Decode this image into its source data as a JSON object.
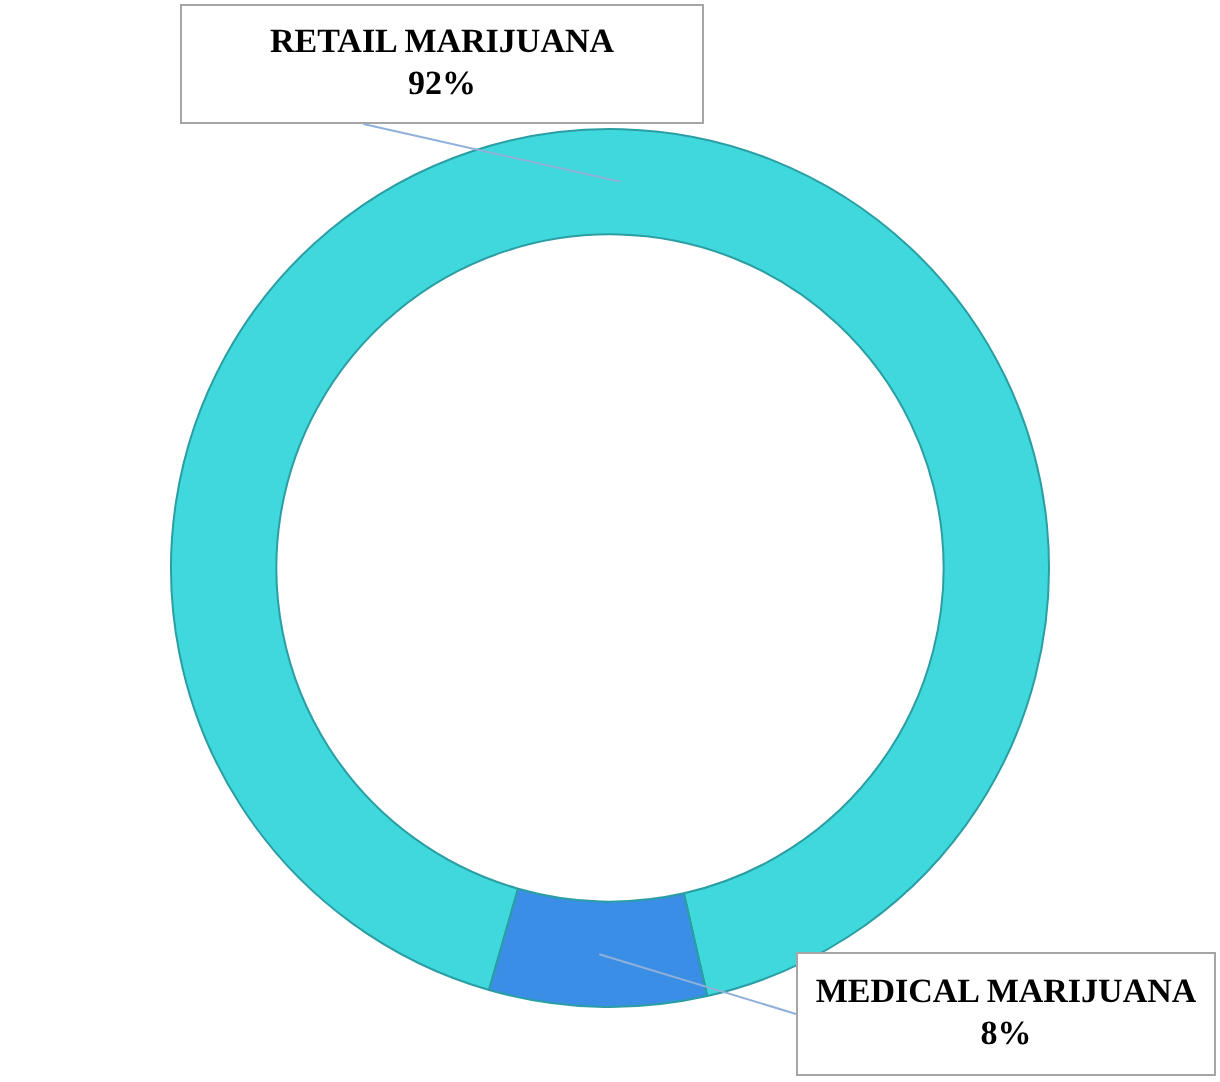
{
  "chart_data": {
    "type": "donut",
    "categories": [
      "RETAIL MARIJUANA",
      "MEDICAL MARIJUANA"
    ],
    "values": [
      92,
      8
    ],
    "colors": [
      "#3fd8dc",
      "#3a8ee6"
    ],
    "value_labels": [
      "92%",
      "8%"
    ],
    "legend": false
  }
}
